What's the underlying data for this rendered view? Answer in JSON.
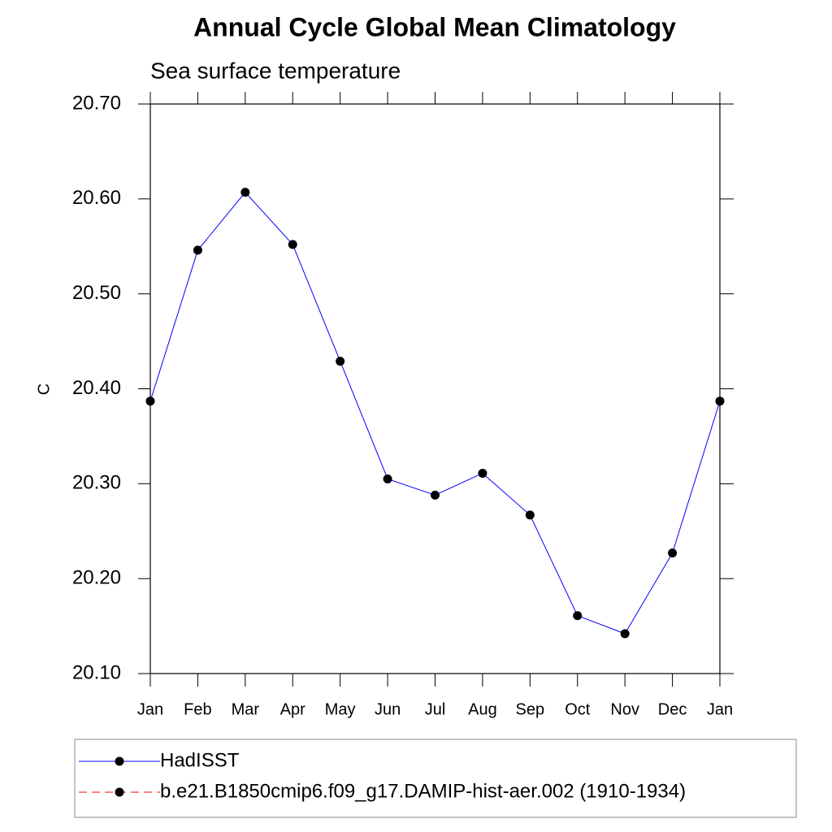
{
  "chart_data": {
    "type": "line",
    "title": "Annual Cycle Global Mean Climatology",
    "subtitle": "Sea surface temperature",
    "y_label": "C",
    "categories": [
      "Jan",
      "Feb",
      "Mar",
      "Apr",
      "May",
      "Jun",
      "Jul",
      "Aug",
      "Sep",
      "Oct",
      "Nov",
      "Dec",
      "Jan"
    ],
    "series": [
      {
        "name": "HadISST",
        "color": "#0000ff",
        "marker_color": "#000000",
        "line_style": "solid",
        "values": [
          20.387,
          20.546,
          20.607,
          20.552,
          20.429,
          20.305,
          20.288,
          20.311,
          20.267,
          20.161,
          20.142,
          20.227,
          20.387
        ]
      },
      {
        "name": "b.e21.B1850cmip6.f09_g17.DAMIP-hist-aer.002 (1910-1934)",
        "color": "#ff0000",
        "marker_color": "#000000",
        "line_style": "dashed",
        "values": [
          null,
          null,
          null,
          null,
          null,
          null,
          null,
          null,
          null,
          null,
          null,
          null,
          null
        ]
      }
    ],
    "ylim": [
      20.1,
      20.7
    ],
    "yticks": [
      {
        "value": 20.1,
        "label": "20.10"
      },
      {
        "value": 20.2,
        "label": "20.20"
      },
      {
        "value": 20.3,
        "label": "20.30"
      },
      {
        "value": 20.4,
        "label": "20.40"
      },
      {
        "value": 20.5,
        "label": "20.50"
      },
      {
        "value": 20.6,
        "label": "20.60"
      },
      {
        "value": 20.7,
        "label": "20.70"
      }
    ],
    "grid": false
  }
}
